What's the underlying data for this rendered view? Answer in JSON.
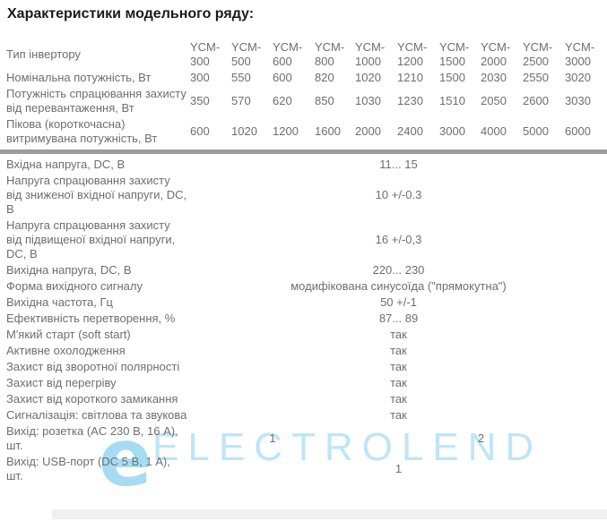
{
  "title": "Характеристики модельного ряду:",
  "watermark": {
    "logo_char": "e",
    "text": "ELECTROLEND",
    "color": "#bce6f8"
  },
  "colors": {
    "text": "#6e6e6e",
    "title": "#1a1a1a",
    "divider": "#9c9c9c",
    "watermark_blue": "#a6dcf3"
  },
  "table": {
    "columns": 10,
    "rows": [
      {
        "label": "Тип інвертору",
        "values": [
          "YCM-300",
          "YCM-500",
          "YCM-600",
          "YCM-800",
          "YCM-1000",
          "YCM-1200",
          "YCM-1500",
          "YCM-2000",
          "YCM-2500",
          "YCM-3000"
        ]
      },
      {
        "label": "Номінальна потужність, Вт",
        "values": [
          "300",
          "550",
          "600",
          "820",
          "1020",
          "1210",
          "1500",
          "2030",
          "2550",
          "3020"
        ]
      },
      {
        "label": "Потужність спрацювання захисту від перевантаження, Вт",
        "values": [
          "350",
          "570",
          "620",
          "850",
          "1030",
          "1230",
          "1510",
          "2050",
          "2600",
          "3030"
        ]
      },
      {
        "label": "Пікова (короткочасна) витримувана потужність, Вт",
        "values": [
          "600",
          "1020",
          "1200",
          "1600",
          "2000",
          "2400",
          "3000",
          "4000",
          "5000",
          "6000"
        ]
      },
      {
        "separator": true
      },
      {
        "label": "Вхідна напруга, DC, В",
        "merged": "11... 15"
      },
      {
        "label": "Напруга спрацювання захисту від зниженої вхідної напруги, DC, В",
        "merged": "10 +/-0.3"
      },
      {
        "label": "Напруга спрацювання захисту від підвищеної вхідної напруги, DC, В",
        "merged": "16 +/-0,3"
      },
      {
        "label": "Вихідна напруга, DC, В",
        "merged": "220... 230"
      },
      {
        "label": "Форма вихідного сигналу",
        "merged": "модифікована синусоїда (\"прямокутна\")"
      },
      {
        "label": "Вихідна частота, Гц",
        "merged": "50 +/-1"
      },
      {
        "label": "Ефективність перетворення, %",
        "merged": "87... 89"
      },
      {
        "label": "М'який старт (soft start)",
        "merged": "так"
      },
      {
        "label": "Активне охолодження",
        "merged": "так"
      },
      {
        "label": "Захист від зворотної полярності",
        "merged": "так"
      },
      {
        "label": "Захист від перегріву",
        "merged": "так"
      },
      {
        "label": "Захист від короткого замикання",
        "merged": "так"
      },
      {
        "label": "Сигналізація: світлова та звукова",
        "merged": "так"
      },
      {
        "label": "Вихід: розетка (AC 230 В, 16 А), шт.",
        "spans": [
          {
            "cols": 4,
            "value": "1"
          },
          {
            "cols": 6,
            "value": "2"
          }
        ]
      },
      {
        "label": "Вихід: USB-порт (DC 5 В, 1 А), шт.",
        "merged": "1"
      }
    ]
  }
}
